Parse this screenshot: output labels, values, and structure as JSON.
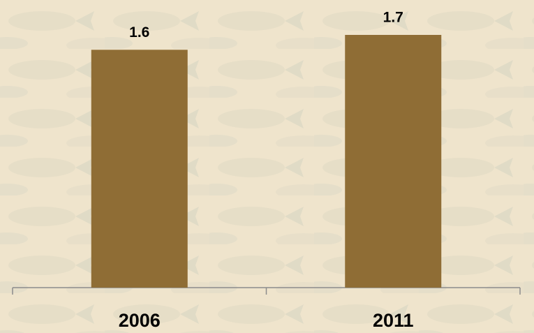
{
  "chart_data": {
    "type": "bar",
    "categories": [
      "2006",
      "2011"
    ],
    "values": [
      1.6,
      1.7
    ],
    "color": "#8f6d35"
  }
}
